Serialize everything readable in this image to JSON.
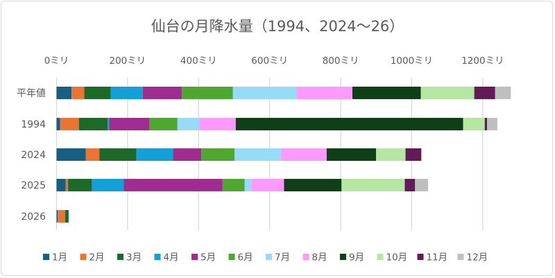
{
  "chart_data": {
    "type": "bar",
    "orientation": "horizontal",
    "stacked": true,
    "title": "仙台の月降水量（1994、2024～26）",
    "categories": [
      "平年値",
      "1994",
      "2024",
      "2025",
      "2026"
    ],
    "xlim": [
      0,
      1300
    ],
    "xticks": [
      0,
      200,
      400,
      600,
      800,
      1000,
      1200
    ],
    "xtick_labels": [
      "0ミリ",
      "200ミリ",
      "400ミリ",
      "600ミリ",
      "800ミリ",
      "1000ミリ",
      "1200ミリ"
    ],
    "grid": true,
    "legend_position": "bottom",
    "series": [
      {
        "name": "1月",
        "color": "#175e83",
        "values": [
          42.3,
          10,
          82,
          26,
          3
        ]
      },
      {
        "name": "2月",
        "color": "#ed7333",
        "values": [
          35.9,
          53,
          38.5,
          6.4,
          21
        ]
      },
      {
        "name": "3月",
        "color": "#1b6a27",
        "values": [
          74.4,
          81,
          104,
          67,
          10
        ]
      },
      {
        "name": "4月",
        "color": "#12a0d8",
        "values": [
          90.2,
          4.5,
          103,
          90,
          0
        ]
      },
      {
        "name": "5月",
        "color": "#a02b91",
        "values": [
          110.2,
          113,
          80,
          278,
          0
        ]
      },
      {
        "name": "6月",
        "color": "#4ea72e",
        "values": [
          143.7,
          79,
          94,
          62,
          0
        ]
      },
      {
        "name": "7月",
        "color": "#97dcf7",
        "values": [
          178.4,
          61,
          130,
          19,
          0
        ]
      },
      {
        "name": "8月",
        "color": "#ff99ff",
        "values": [
          157.8,
          103,
          129,
          92,
          0
        ]
      },
      {
        "name": "9月",
        "color": "#0f3f17",
        "values": [
          192.6,
          640,
          139,
          162,
          0
        ]
      },
      {
        "name": "10月",
        "color": "#b5e6a2",
        "values": [
          150.6,
          61,
          83,
          178,
          0
        ]
      },
      {
        "name": "11月",
        "color": "#631b57",
        "values": [
          58.7,
          6.5,
          44,
          29,
          0
        ]
      },
      {
        "name": "12月",
        "color": "#bfbfbf",
        "values": [
          44.1,
          29,
          2,
          36.5,
          0
        ]
      }
    ]
  }
}
